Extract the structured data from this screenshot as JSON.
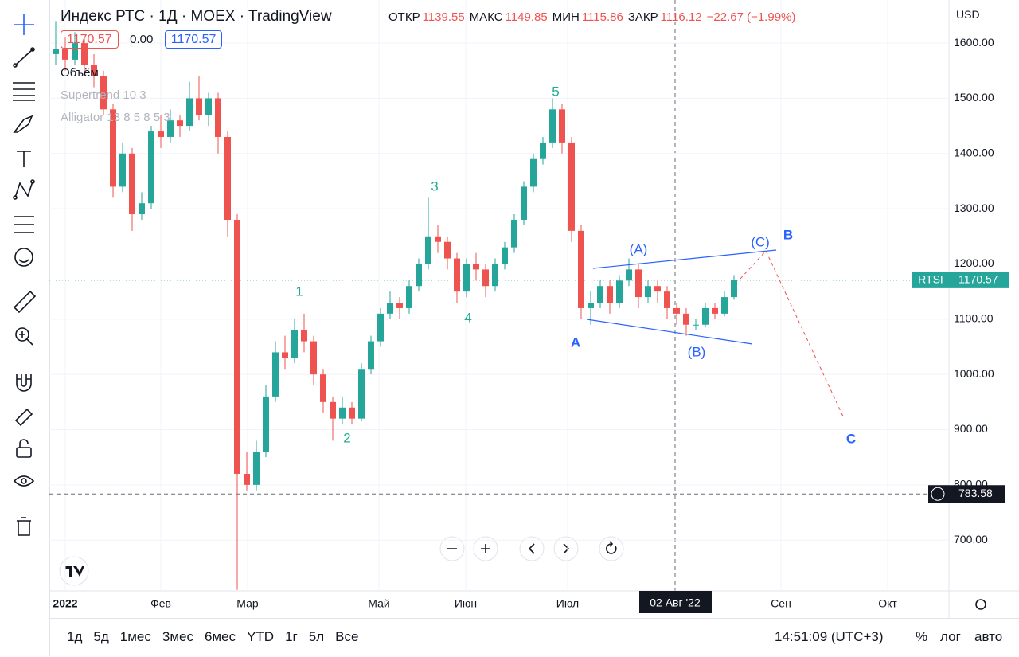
{
  "header": {
    "symbol": "Индекс РТС",
    "sep": "·",
    "interval": "1Д",
    "exchange": "MOEX",
    "source": "TradingView",
    "ohlc": [
      {
        "label": "ОТКР",
        "value": 1139.55
      },
      {
        "label": "МАКС",
        "value": 1149.85
      },
      {
        "label": "МИН",
        "value": 1115.86
      },
      {
        "label": "ЗАКР",
        "value": 1116.12
      }
    ],
    "change": "−22.67 (−1.99%)",
    "sell": 1170.57,
    "spread": "0.00",
    "buy": 1170.57,
    "indicators": [
      "Объём",
      "Supertrend 10 3",
      "Alligator 13 8 5 8 5 3"
    ],
    "currency": "USD"
  },
  "chart_data": {
    "type": "candlestick",
    "ylim": [
      608,
      1678
    ],
    "yticks": [
      {
        "value": 700,
        "label": "700.00"
      },
      {
        "value": 800,
        "label": "800.00"
      },
      {
        "value": 900,
        "label": "900.00"
      },
      {
        "value": 1000,
        "label": "1000.00"
      },
      {
        "value": 1100,
        "label": "1100.00"
      },
      {
        "value": 1200,
        "label": "1200.00"
      },
      {
        "value": 1300,
        "label": "1300.00"
      },
      {
        "value": 1400,
        "label": "1400.00"
      },
      {
        "value": 1500,
        "label": "1500.00"
      },
      {
        "value": 1600,
        "label": "1600.00"
      }
    ],
    "x_labels": [
      "2022",
      "Фев",
      "Мар",
      "Май",
      "Июн",
      "Июл",
      "Сен",
      "Окт"
    ],
    "crosshair_label": "02 Авг '22",
    "up_color": "#26a69a",
    "down_color": "#ef5350",
    "candles": [
      [
        1580,
        1640,
        1560,
        1590
      ],
      [
        1590,
        1610,
        1550,
        1570
      ],
      [
        1570,
        1620,
        1560,
        1600
      ],
      [
        1600,
        1610,
        1540,
        1560
      ],
      [
        1560,
        1580,
        1520,
        1540
      ],
      [
        1540,
        1550,
        1470,
        1480
      ],
      [
        1480,
        1490,
        1320,
        1340
      ],
      [
        1340,
        1420,
        1330,
        1400
      ],
      [
        1400,
        1410,
        1260,
        1290
      ],
      [
        1290,
        1330,
        1280,
        1310
      ],
      [
        1310,
        1450,
        1300,
        1440
      ],
      [
        1440,
        1470,
        1410,
        1430
      ],
      [
        1430,
        1480,
        1420,
        1460
      ],
      [
        1460,
        1470,
        1430,
        1450
      ],
      [
        1450,
        1530,
        1440,
        1500
      ],
      [
        1500,
        1540,
        1460,
        1470
      ],
      [
        1470,
        1510,
        1450,
        1500
      ],
      [
        1500,
        1510,
        1400,
        1430
      ],
      [
        1430,
        1440,
        1250,
        1280
      ],
      [
        1280,
        1290,
        610,
        820
      ],
      [
        820,
        860,
        790,
        800
      ],
      [
        800,
        880,
        790,
        860
      ],
      [
        860,
        980,
        850,
        960
      ],
      [
        960,
        1060,
        950,
        1040
      ],
      [
        1040,
        1070,
        1010,
        1030
      ],
      [
        1030,
        1100,
        1020,
        1080
      ],
      [
        1080,
        1110,
        1040,
        1060
      ],
      [
        1060,
        1070,
        980,
        1000
      ],
      [
        1000,
        1010,
        930,
        950
      ],
      [
        950,
        960,
        880,
        920
      ],
      [
        920,
        960,
        910,
        940
      ],
      [
        940,
        950,
        910,
        920
      ],
      [
        920,
        1020,
        915,
        1010
      ],
      [
        1010,
        1070,
        1000,
        1060
      ],
      [
        1060,
        1120,
        1050,
        1110
      ],
      [
        1110,
        1150,
        1100,
        1130
      ],
      [
        1130,
        1140,
        1100,
        1120
      ],
      [
        1120,
        1170,
        1110,
        1160
      ],
      [
        1160,
        1210,
        1150,
        1200
      ],
      [
        1200,
        1320,
        1190,
        1250
      ],
      [
        1250,
        1270,
        1220,
        1240
      ],
      [
        1240,
        1250,
        1190,
        1210
      ],
      [
        1210,
        1220,
        1130,
        1150
      ],
      [
        1150,
        1210,
        1140,
        1200
      ],
      [
        1200,
        1220,
        1170,
        1190
      ],
      [
        1190,
        1200,
        1140,
        1160
      ],
      [
        1160,
        1210,
        1150,
        1200
      ],
      [
        1200,
        1240,
        1190,
        1230
      ],
      [
        1230,
        1290,
        1220,
        1280
      ],
      [
        1280,
        1350,
        1270,
        1340
      ],
      [
        1340,
        1400,
        1330,
        1390
      ],
      [
        1390,
        1430,
        1380,
        1420
      ],
      [
        1420,
        1500,
        1410,
        1480
      ],
      [
        1480,
        1490,
        1400,
        1420
      ],
      [
        1420,
        1430,
        1240,
        1260
      ],
      [
        1260,
        1270,
        1100,
        1120
      ],
      [
        1120,
        1150,
        1090,
        1130
      ],
      [
        1130,
        1170,
        1120,
        1160
      ],
      [
        1160,
        1170,
        1110,
        1130
      ],
      [
        1130,
        1180,
        1120,
        1170
      ],
      [
        1170,
        1210,
        1160,
        1190
      ],
      [
        1190,
        1200,
        1120,
        1140
      ],
      [
        1140,
        1170,
        1130,
        1160
      ],
      [
        1160,
        1170,
        1130,
        1150
      ],
      [
        1150,
        1160,
        1100,
        1120
      ],
      [
        1120,
        1130,
        1090,
        1110
      ],
      [
        1110,
        1120,
        1070,
        1090
      ],
      [
        1090,
        1100,
        1080,
        1090
      ],
      [
        1090,
        1130,
        1085,
        1120
      ],
      [
        1120,
        1130,
        1100,
        1110
      ],
      [
        1110,
        1150,
        1105,
        1140
      ],
      [
        1140,
        1180,
        1135,
        1170.57
      ]
    ],
    "last_price": {
      "label": "RTSI",
      "value": 1170.57
    },
    "crosshair_price": 783.58,
    "wave_labels": [
      "1",
      "2",
      "3",
      "4",
      "5",
      "A",
      "(A)",
      "(B)",
      "(C)",
      "B",
      "C"
    ]
  },
  "bottom_bar": {
    "ranges": [
      "1д",
      "5д",
      "1мес",
      "3мес",
      "6мес",
      "YTD",
      "1г",
      "5л",
      "Все"
    ],
    "time": "14:51:09 (UTC+3)",
    "percent": "%",
    "log": "лог",
    "auto": "авто"
  }
}
